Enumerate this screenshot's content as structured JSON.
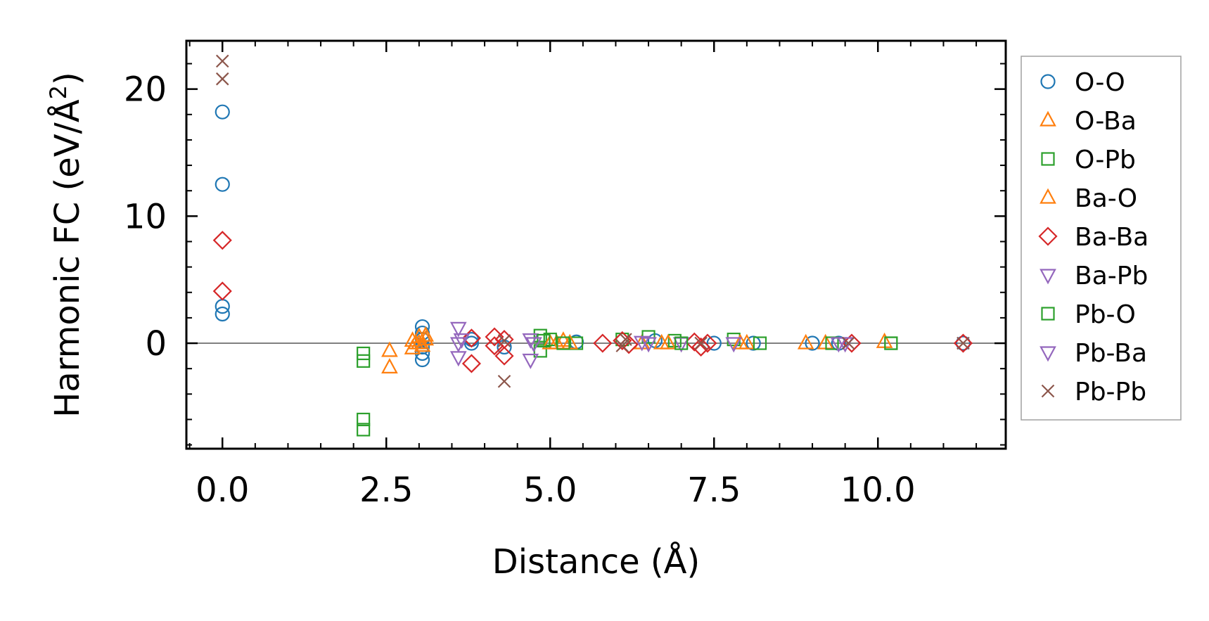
{
  "chart_data": {
    "type": "scatter",
    "xlabel": "Distance (Å)",
    "ylabel_main": "Harmonic FC (eV/Å",
    "ylabel_sup": "2",
    "ylabel_close": ")",
    "xlim": [
      -0.55,
      11.95
    ],
    "ylim": [
      -8.3,
      23.8
    ],
    "xticks": [
      0.0,
      2.5,
      5.0,
      7.5,
      10.0
    ],
    "xtick_labels": [
      "0.0",
      "2.5",
      "5.0",
      "7.5",
      "10.0"
    ],
    "yticks": [
      0,
      10,
      20
    ],
    "ytick_labels": [
      "0",
      "10",
      "20"
    ],
    "reference_line_y": 0,
    "legend_position": "right-outside",
    "series": [
      {
        "name": "O-O",
        "marker": "circle",
        "color": "#1f77b4",
        "points": [
          [
            0,
            18.2
          ],
          [
            0,
            12.5
          ],
          [
            0,
            2.9
          ],
          [
            0,
            2.3
          ],
          [
            3.05,
            1.3
          ],
          [
            3.05,
            0.8
          ],
          [
            3.05,
            0.3
          ],
          [
            3.05,
            -0.3
          ],
          [
            3.05,
            -0.8
          ],
          [
            3.05,
            -1.3
          ],
          [
            3.8,
            0.3
          ],
          [
            3.8,
            0.0
          ],
          [
            4.3,
            -0.3
          ],
          [
            5.4,
            0.1
          ],
          [
            6.6,
            0.2
          ],
          [
            7.5,
            0.0
          ],
          [
            8.1,
            0.0
          ],
          [
            9.0,
            0.0
          ],
          [
            9.4,
            0.0
          ],
          [
            11.3,
            0.0
          ]
        ]
      },
      {
        "name": "O-Ba",
        "marker": "triangle-up",
        "color": "#ff7f0e",
        "points": [
          [
            2.55,
            -0.6
          ],
          [
            2.55,
            -1.9
          ],
          [
            2.9,
            0.2
          ],
          [
            2.9,
            -0.4
          ],
          [
            2.95,
            0.0
          ],
          [
            3.0,
            0.5
          ],
          [
            3.05,
            -0.2
          ],
          [
            3.1,
            0.6
          ],
          [
            5.1,
            0.0
          ],
          [
            5.2,
            0.2
          ],
          [
            6.4,
            0.0
          ],
          [
            6.7,
            0.0
          ],
          [
            8.0,
            0.0
          ],
          [
            8.9,
            0.0
          ],
          [
            9.2,
            0.0
          ],
          [
            10.1,
            0.1
          ]
        ]
      },
      {
        "name": "O-Pb",
        "marker": "square",
        "color": "#2ca02c",
        "points": [
          [
            2.15,
            -0.8
          ],
          [
            2.15,
            -1.4
          ],
          [
            2.15,
            -6.0
          ],
          [
            2.15,
            -6.8
          ],
          [
            4.85,
            0.6
          ],
          [
            4.85,
            -0.6
          ],
          [
            5.0,
            0.3
          ],
          [
            5.4,
            0.0
          ],
          [
            6.1,
            0.3
          ],
          [
            6.5,
            0.5
          ],
          [
            6.9,
            0.2
          ],
          [
            7.8,
            0.3
          ],
          [
            8.2,
            0.0
          ],
          [
            9.3,
            0.0
          ],
          [
            10.2,
            0.0
          ]
        ]
      },
      {
        "name": "Ba-O",
        "marker": "triangle-up",
        "color": "#ff7f0e",
        "points": [
          [
            3.0,
            0.0
          ],
          [
            3.1,
            0.3
          ],
          [
            5.0,
            0.0
          ],
          [
            5.3,
            0.0
          ],
          [
            6.8,
            0.0
          ],
          [
            7.9,
            0.0
          ]
        ]
      },
      {
        "name": "Ba-Ba",
        "marker": "diamond",
        "color": "#d62728",
        "points": [
          [
            0,
            8.1
          ],
          [
            0,
            4.1
          ],
          [
            3.8,
            0.4
          ],
          [
            3.8,
            -1.6
          ],
          [
            4.15,
            0.5
          ],
          [
            4.15,
            -0.2
          ],
          [
            4.3,
            0.3
          ],
          [
            4.3,
            -1.0
          ],
          [
            5.8,
            0.0
          ],
          [
            6.1,
            0.2
          ],
          [
            6.2,
            -0.1
          ],
          [
            7.2,
            0.1
          ],
          [
            7.3,
            -0.3
          ],
          [
            7.4,
            0.0
          ],
          [
            9.6,
            0.0
          ],
          [
            11.3,
            0.0
          ]
        ]
      },
      {
        "name": "Ba-Pb",
        "marker": "triangle-down",
        "color": "#9467bd",
        "points": [
          [
            3.6,
            1.2
          ],
          [
            3.6,
            0.0
          ],
          [
            3.6,
            -1.1
          ],
          [
            4.7,
            0.3
          ],
          [
            4.7,
            -1.3
          ],
          [
            6.4,
            0.1
          ],
          [
            7.0,
            0.0
          ],
          [
            7.8,
            0.0
          ],
          [
            9.4,
            0.0
          ]
        ]
      },
      {
        "name": "Pb-O",
        "marker": "square",
        "color": "#2ca02c",
        "points": [
          [
            4.9,
            0.2
          ],
          [
            5.2,
            0.0
          ],
          [
            7.0,
            0.0
          ],
          [
            10.2,
            0.0
          ]
        ]
      },
      {
        "name": "Pb-Ba",
        "marker": "triangle-down",
        "color": "#9467bd",
        "points": [
          [
            3.65,
            0.3
          ],
          [
            4.75,
            0.0
          ],
          [
            6.5,
            0.0
          ],
          [
            9.5,
            0.0
          ]
        ]
      },
      {
        "name": "Pb-Pb",
        "marker": "x",
        "color": "#8c564b",
        "points": [
          [
            0,
            22.2
          ],
          [
            0,
            20.8
          ],
          [
            4.3,
            -3.0
          ],
          [
            4.3,
            0.2
          ],
          [
            6.1,
            -0.2
          ],
          [
            6.15,
            0.3
          ],
          [
            7.3,
            0.0
          ],
          [
            9.55,
            0.0
          ],
          [
            11.3,
            0.0
          ]
        ]
      }
    ]
  }
}
